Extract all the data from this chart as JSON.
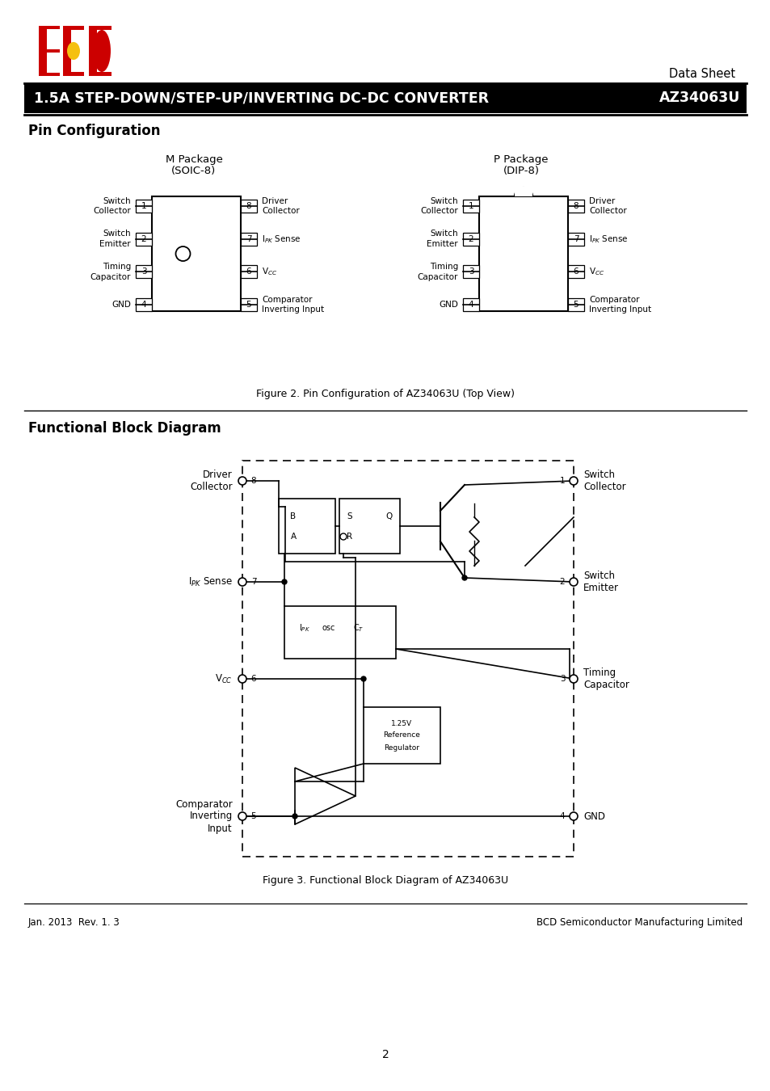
{
  "page_bg": "#ffffff",
  "header_bar_color": "#000000",
  "header_text": "1.5A STEP-DOWN/STEP-UP/INVERTING DC-DC CONVERTER",
  "header_part": "AZ34063U",
  "data_sheet_text": "Data Sheet",
  "section1_title": "Pin Configuration",
  "pkg1_title1": "M Package",
  "pkg1_title2": "(SOIC-8)",
  "pkg2_title1": "P Package",
  "pkg2_title2": "(DIP-8)",
  "fig2_caption": "Figure 2. Pin Configuration of AZ34063U (Top View)",
  "section2_title": "Functional Block Diagram",
  "fig3_caption": "Figure 3. Functional Block Diagram of AZ34063U",
  "footer_left": "Jan. 2013  Rev. 1. 3",
  "footer_right": "BCD Semiconductor Manufacturing Limited",
  "footer_page": "2"
}
